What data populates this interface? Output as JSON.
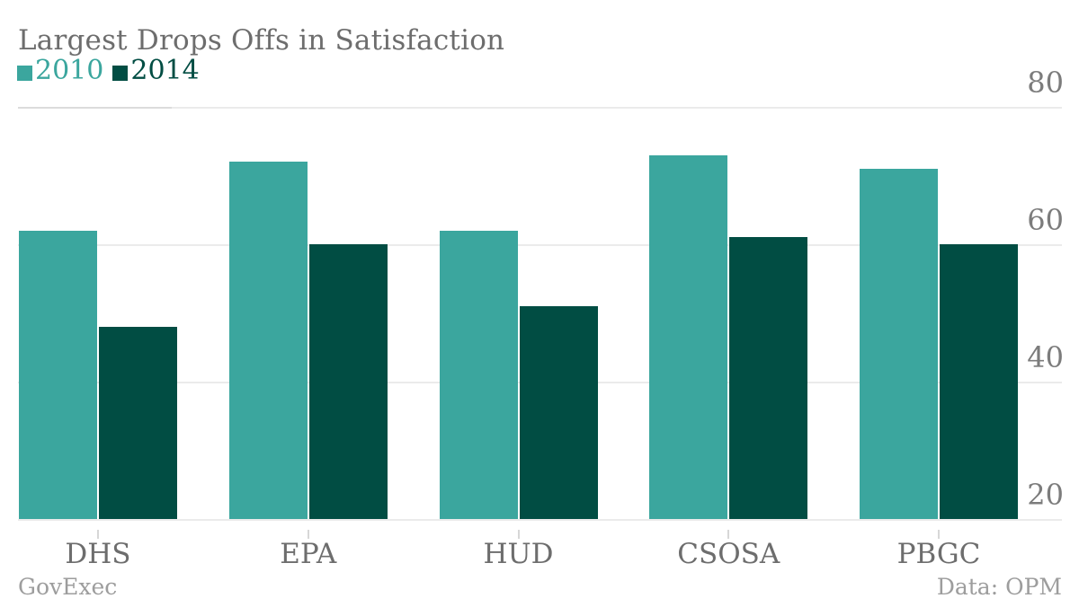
{
  "header": {
    "title": "Largest Drops Offs in Satisfaction"
  },
  "legend": {
    "items": [
      {
        "label": "2010",
        "color": "#3BA69E"
      },
      {
        "label": "2014",
        "color": "#014D43"
      }
    ]
  },
  "footer": {
    "attribution": "GovExec",
    "source": "Data: OPM"
  },
  "colors": {
    "series_2010": "#3BA69E",
    "series_2014": "#014D43",
    "title_text": "#6d6d6d",
    "axis_text": "#7c7c7c",
    "footer_text": "#9d9d9d",
    "gridline": "#ebebeb"
  },
  "chart_data": {
    "type": "bar",
    "title": "Largest Drops Offs in Satisfaction",
    "categories": [
      "DHS",
      "EPA",
      "HUD",
      "CSOSA",
      "PBGC"
    ],
    "series": [
      {
        "name": "2010",
        "color": "#3BA69E",
        "values": [
          62,
          72,
          62,
          73,
          71
        ]
      },
      {
        "name": "2014",
        "color": "#014D43",
        "values": [
          48,
          60,
          51,
          61,
          60
        ]
      }
    ],
    "xlabel": "",
    "ylabel": "",
    "ylim": [
      20,
      80
    ],
    "yticks": [
      20,
      40,
      60,
      80
    ],
    "grid": true,
    "legend_position": "top-left",
    "value_axis_side": "right",
    "baseline_value": 20
  }
}
